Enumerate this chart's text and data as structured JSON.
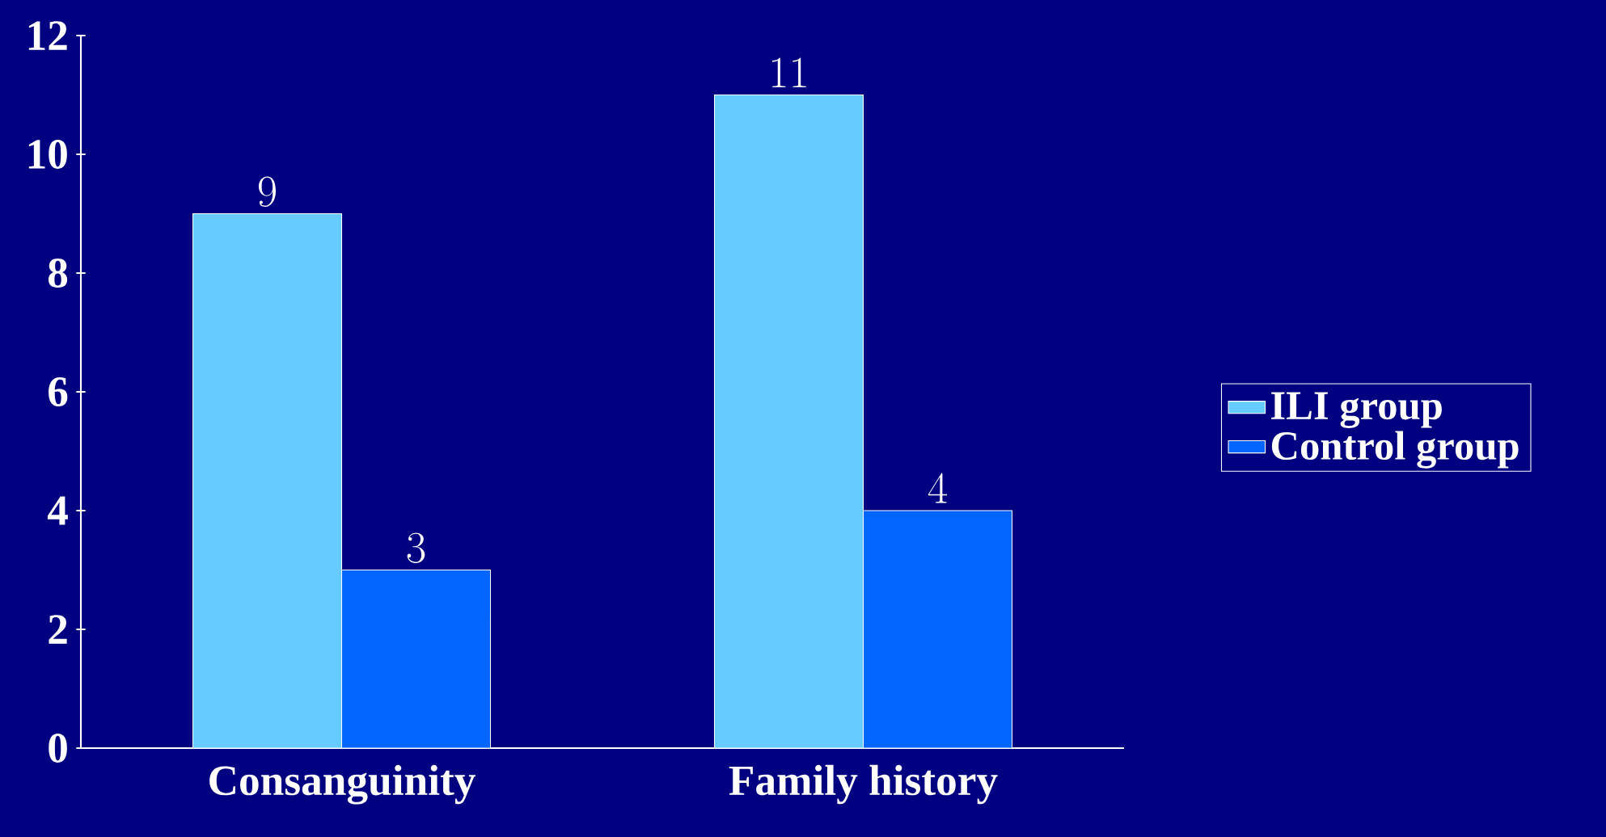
{
  "chart_data": {
    "type": "bar",
    "categories": [
      "Consanguinity",
      "Family history"
    ],
    "series": [
      {
        "name": "ILI group",
        "color": "#66ccff",
        "values": [
          9,
          11
        ]
      },
      {
        "name": "Control group",
        "color": "#0066ff",
        "values": [
          3,
          4
        ]
      }
    ],
    "ylim": [
      0,
      12
    ],
    "yticks": [
      0,
      2,
      4,
      6,
      8,
      10,
      12
    ],
    "data_labels": true,
    "legend": "right",
    "grid": false
  }
}
